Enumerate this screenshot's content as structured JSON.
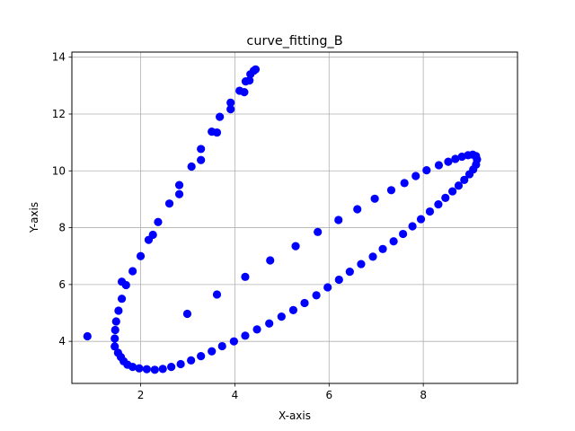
{
  "chart_data": {
    "type": "scatter",
    "title": "curve_fitting_B",
    "xlabel": "X-axis",
    "ylabel": "Y-axis",
    "xlim": [
      0.54,
      10.0
    ],
    "ylim": [
      2.52,
      14.18
    ],
    "xticks": [
      2,
      4,
      6,
      8
    ],
    "yticks": [
      4,
      6,
      8,
      10,
      12,
      14
    ],
    "grid": true,
    "marker_color": "#0000ff",
    "series": [
      {
        "name": "",
        "points": [
          [
            0.87,
            4.18
          ],
          [
            1.45,
            3.82
          ],
          [
            1.45,
            4.1
          ],
          [
            1.46,
            4.4
          ],
          [
            1.48,
            4.7
          ],
          [
            1.53,
            5.08
          ],
          [
            1.6,
            5.5
          ],
          [
            1.6,
            6.1
          ],
          [
            1.69,
            5.98
          ],
          [
            1.83,
            6.47
          ],
          [
            2.0,
            7.0
          ],
          [
            2.17,
            7.57
          ],
          [
            2.26,
            7.75
          ],
          [
            2.37,
            8.2
          ],
          [
            2.61,
            8.85
          ],
          [
            2.82,
            9.18
          ],
          [
            2.82,
            9.5
          ],
          [
            3.08,
            10.15
          ],
          [
            3.28,
            10.38
          ],
          [
            3.28,
            10.77
          ],
          [
            3.51,
            11.38
          ],
          [
            3.62,
            11.35
          ],
          [
            3.68,
            11.9
          ],
          [
            3.91,
            12.17
          ],
          [
            3.91,
            12.4
          ],
          [
            4.1,
            12.82
          ],
          [
            4.2,
            12.77
          ],
          [
            4.23,
            13.15
          ],
          [
            4.31,
            13.18
          ],
          [
            4.33,
            13.4
          ],
          [
            4.4,
            13.52
          ],
          [
            4.44,
            13.57
          ],
          [
            1.52,
            3.6
          ],
          [
            1.58,
            3.45
          ],
          [
            1.64,
            3.3
          ],
          [
            1.72,
            3.18
          ],
          [
            1.83,
            3.1
          ],
          [
            1.97,
            3.05
          ],
          [
            2.13,
            3.02
          ],
          [
            2.3,
            3.0
          ],
          [
            2.47,
            3.03
          ],
          [
            2.65,
            3.1
          ],
          [
            2.85,
            3.2
          ],
          [
            3.07,
            3.33
          ],
          [
            3.28,
            3.48
          ],
          [
            3.51,
            3.65
          ],
          [
            3.73,
            3.83
          ],
          [
            3.98,
            4.0
          ],
          [
            4.22,
            4.2
          ],
          [
            4.47,
            4.42
          ],
          [
            4.73,
            4.63
          ],
          [
            4.99,
            4.87
          ],
          [
            5.24,
            5.1
          ],
          [
            5.48,
            5.35
          ],
          [
            5.73,
            5.62
          ],
          [
            5.97,
            5.9
          ],
          [
            6.21,
            6.17
          ],
          [
            6.44,
            6.45
          ],
          [
            6.68,
            6.72
          ],
          [
            6.93,
            6.98
          ],
          [
            7.14,
            7.25
          ],
          [
            7.37,
            7.52
          ],
          [
            7.57,
            7.78
          ],
          [
            7.77,
            8.05
          ],
          [
            7.95,
            8.3
          ],
          [
            8.14,
            8.57
          ],
          [
            8.32,
            8.82
          ],
          [
            8.47,
            9.05
          ],
          [
            8.62,
            9.28
          ],
          [
            8.75,
            9.48
          ],
          [
            8.87,
            9.68
          ],
          [
            8.98,
            9.88
          ],
          [
            9.06,
            10.05
          ],
          [
            9.12,
            10.22
          ],
          [
            9.14,
            10.4
          ],
          [
            9.12,
            10.52
          ],
          [
            9.05,
            10.57
          ],
          [
            8.95,
            10.55
          ],
          [
            8.82,
            10.5
          ],
          [
            8.68,
            10.42
          ],
          [
            8.53,
            10.32
          ],
          [
            8.33,
            10.2
          ],
          [
            8.07,
            10.02
          ],
          [
            7.84,
            9.82
          ],
          [
            7.6,
            9.57
          ],
          [
            7.32,
            9.32
          ],
          [
            6.97,
            9.02
          ],
          [
            6.6,
            8.65
          ],
          [
            6.2,
            8.27
          ],
          [
            5.76,
            7.85
          ],
          [
            5.29,
            7.35
          ],
          [
            4.75,
            6.85
          ],
          [
            4.22,
            6.27
          ],
          [
            3.62,
            5.65
          ],
          [
            2.99,
            4.97
          ]
        ]
      }
    ]
  }
}
